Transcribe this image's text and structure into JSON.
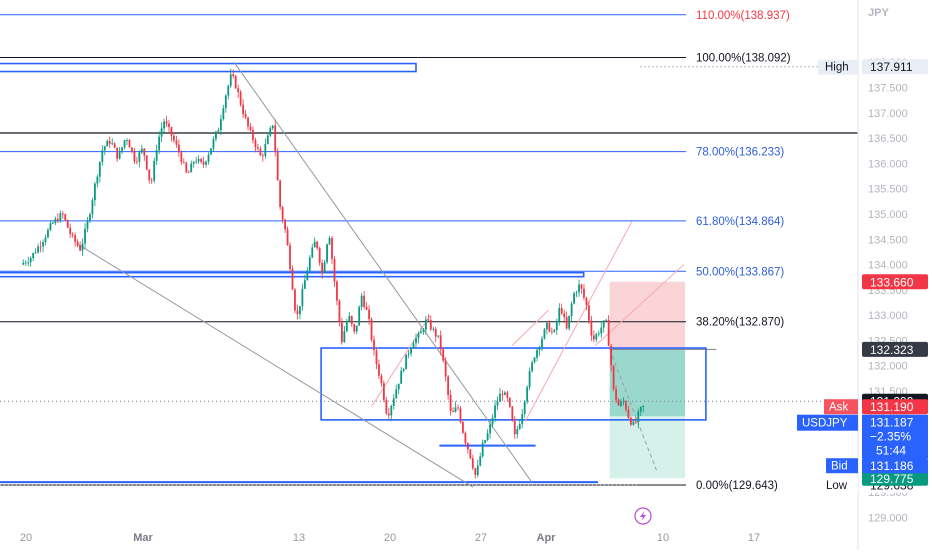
{
  "chart_data": {
    "type": "candlestick",
    "symbol": "USDJPY",
    "currency": "JPY",
    "x_axis": {
      "ticks": [
        {
          "label": "20",
          "day": -9
        },
        {
          "label": "Mar",
          "day": 0
        },
        {
          "label": "13",
          "day": 12
        },
        {
          "label": "20",
          "day": 19
        },
        {
          "label": "27",
          "day": 26
        },
        {
          "label": "Apr",
          "day": 31
        },
        {
          "label": "10",
          "day": 40
        },
        {
          "label": "17",
          "day": 47
        }
      ]
    },
    "y_axis": {
      "ticks": [
        "129.000",
        "129.500",
        "130.000",
        "130.500",
        "131.000",
        "131.500",
        "132.000",
        "132.500",
        "133.000",
        "133.500",
        "134.000",
        "134.500",
        "135.000",
        "135.500",
        "136.000",
        "136.500",
        "137.000",
        "137.500",
        "138.000"
      ],
      "ylim": [
        128.65,
        138.92
      ]
    },
    "fibonacci": [
      {
        "label": "110.00%(138.937)",
        "price": 138.937
      },
      {
        "label": "100.00%(138.092)",
        "price": 138.092
      },
      {
        "label": "78.00%(136.233)",
        "price": 136.233
      },
      {
        "label": "61.80%(134.864)",
        "price": 134.864
      },
      {
        "label": "50.00%(133.867)",
        "price": 133.867
      },
      {
        "label": "38.20%(132.870)",
        "price": 132.87
      },
      {
        "label": "0.00%(129.643)",
        "price": 129.643
      }
    ],
    "price_path": [
      {
        "day": -9.4,
        "price": 134.0
      },
      {
        "day": -8.6,
        "price": 134.15
      },
      {
        "day": -7.8,
        "price": 134.45
      },
      {
        "day": -7.0,
        "price": 134.8
      },
      {
        "day": -6.2,
        "price": 135.0
      },
      {
        "day": -5.5,
        "price": 134.55
      },
      {
        "day": -4.8,
        "price": 134.3
      },
      {
        "day": -4.2,
        "price": 134.9
      },
      {
        "day": -3.6,
        "price": 135.7
      },
      {
        "day": -3.1,
        "price": 136.3
      },
      {
        "day": -2.5,
        "price": 136.45
      },
      {
        "day": -1.9,
        "price": 136.1
      },
      {
        "day": -1.3,
        "price": 136.55
      },
      {
        "day": -0.6,
        "price": 136.05
      },
      {
        "day": 0.0,
        "price": 136.3
      },
      {
        "day": 0.6,
        "price": 135.55
      },
      {
        "day": 1.1,
        "price": 136.4
      },
      {
        "day": 1.6,
        "price": 136.85
      },
      {
        "day": 2.2,
        "price": 136.55
      },
      {
        "day": 2.8,
        "price": 136.2
      },
      {
        "day": 3.4,
        "price": 135.75
      },
      {
        "day": 4.0,
        "price": 136.1
      },
      {
        "day": 4.6,
        "price": 135.95
      },
      {
        "day": 5.2,
        "price": 136.3
      },
      {
        "day": 5.8,
        "price": 136.7
      },
      {
        "day": 6.3,
        "price": 137.3
      },
      {
        "day": 6.8,
        "price": 137.75
      },
      {
        "day": 7.2,
        "price": 137.5
      },
      {
        "day": 7.6,
        "price": 137.1
      },
      {
        "day": 8.1,
        "price": 136.7
      },
      {
        "day": 8.6,
        "price": 136.4
      },
      {
        "day": 9.1,
        "price": 136.1
      },
      {
        "day": 9.6,
        "price": 136.5
      },
      {
        "day": 10.0,
        "price": 136.8
      },
      {
        "day": 10.5,
        "price": 135.2
      },
      {
        "day": 11.0,
        "price": 134.6
      },
      {
        "day": 11.4,
        "price": 133.8
      },
      {
        "day": 11.8,
        "price": 132.9
      },
      {
        "day": 12.3,
        "price": 133.5
      },
      {
        "day": 12.8,
        "price": 134.1
      },
      {
        "day": 13.3,
        "price": 134.5
      },
      {
        "day": 13.8,
        "price": 133.8
      },
      {
        "day": 14.3,
        "price": 134.7
      },
      {
        "day": 14.8,
        "price": 133.5
      },
      {
        "day": 15.3,
        "price": 132.5
      },
      {
        "day": 15.8,
        "price": 133.0
      },
      {
        "day": 16.3,
        "price": 132.6
      },
      {
        "day": 16.8,
        "price": 133.4
      },
      {
        "day": 17.3,
        "price": 133.0
      },
      {
        "day": 17.8,
        "price": 132.2
      },
      {
        "day": 18.3,
        "price": 131.7
      },
      {
        "day": 18.8,
        "price": 131.0
      },
      {
        "day": 19.3,
        "price": 131.4
      },
      {
        "day": 19.8,
        "price": 131.8
      },
      {
        "day": 20.3,
        "price": 132.2
      },
      {
        "day": 20.8,
        "price": 132.5
      },
      {
        "day": 21.3,
        "price": 132.6
      },
      {
        "day": 21.8,
        "price": 132.9
      },
      {
        "day": 22.3,
        "price": 132.7
      },
      {
        "day": 22.8,
        "price": 132.5
      },
      {
        "day": 23.2,
        "price": 131.9
      },
      {
        "day": 23.7,
        "price": 131.0
      },
      {
        "day": 24.2,
        "price": 131.2
      },
      {
        "day": 24.7,
        "price": 130.6
      },
      {
        "day": 25.2,
        "price": 130.2
      },
      {
        "day": 25.6,
        "price": 129.8
      },
      {
        "day": 26.1,
        "price": 130.4
      },
      {
        "day": 26.6,
        "price": 130.7
      },
      {
        "day": 27.1,
        "price": 131.2
      },
      {
        "day": 27.6,
        "price": 131.5
      },
      {
        "day": 28.1,
        "price": 131.3
      },
      {
        "day": 28.6,
        "price": 130.6
      },
      {
        "day": 29.1,
        "price": 131.0
      },
      {
        "day": 29.6,
        "price": 131.7
      },
      {
        "day": 30.1,
        "price": 132.2
      },
      {
        "day": 30.6,
        "price": 132.5
      },
      {
        "day": 31.1,
        "price": 132.8
      },
      {
        "day": 31.6,
        "price": 132.6
      },
      {
        "day": 32.1,
        "price": 133.2
      },
      {
        "day": 32.6,
        "price": 132.7
      },
      {
        "day": 33.1,
        "price": 133.4
      },
      {
        "day": 33.6,
        "price": 133.6
      },
      {
        "day": 34.1,
        "price": 133.2
      },
      {
        "day": 34.6,
        "price": 132.5
      },
      {
        "day": 35.1,
        "price": 132.7
      },
      {
        "day": 35.6,
        "price": 132.9
      },
      {
        "day": 35.9,
        "price": 132.3
      },
      {
        "day": 36.2,
        "price": 131.5
      },
      {
        "day": 36.6,
        "price": 131.2
      },
      {
        "day": 37.0,
        "price": 131.3
      },
      {
        "day": 37.4,
        "price": 130.95
      },
      {
        "day": 37.8,
        "price": 130.8
      },
      {
        "day": 38.2,
        "price": 131.1
      },
      {
        "day": 38.5,
        "price": 131.19
      }
    ],
    "annotations": {
      "high": {
        "label": "High",
        "value": "137.911",
        "price": 137.911
      },
      "low": {
        "label": "Low",
        "value": "129.638",
        "price": 129.638
      },
      "short_position": {
        "entry": 132.323,
        "stop": 133.66,
        "target": 129.775,
        "start_day": 35.9,
        "end_day": 41.7
      },
      "zone_top": {
        "price": 138.092,
        "start_day": -11.3,
        "end_day": 21.0
      },
      "zone_resistance": {
        "price": 133.8,
        "start_day": -11.3,
        "end_day": 33.9
      },
      "consolidation_box": {
        "top": 132.35,
        "bottom": 130.93,
        "start_day": 13.7,
        "end_day": 43.3
      },
      "support_line": {
        "price": 130.42,
        "start_day": 22.8,
        "end_day": 30.2
      },
      "bottom_line": {
        "price": 129.7,
        "start_day": -11.3,
        "end_day": 35.0
      },
      "black_line_price": 136.6
    },
    "price_labels": [
      {
        "key": "stop",
        "text": "133.660",
        "price": 133.66,
        "color": "#f23645"
      },
      {
        "key": "entry",
        "text": "132.323",
        "price": 132.323,
        "color": "#363a45"
      },
      {
        "key": "last",
        "text": "131.299",
        "price": 131.299,
        "color": "#131722"
      },
      {
        "key": "target",
        "text": "129.775",
        "price": 129.775,
        "color": "#089981"
      }
    ],
    "quote": {
      "ask_label": "Ask",
      "ask": "131.190",
      "symbol": "USDJPY",
      "price": "131.187",
      "change": "−2.35%",
      "countdown": "51:44",
      "bid_label": "Bid",
      "bid": "131.186"
    }
  },
  "colors": {
    "up": "#089981",
    "down": "#f23645",
    "blue": "#2962ff",
    "fib_text": "#2f5fdc",
    "grid_line": "#131722",
    "trend": "#9598a1",
    "stop_fill": "#f9cccf",
    "target_fill": "#8fd3c6"
  },
  "icons": {
    "lightning": "lightning-icon"
  }
}
